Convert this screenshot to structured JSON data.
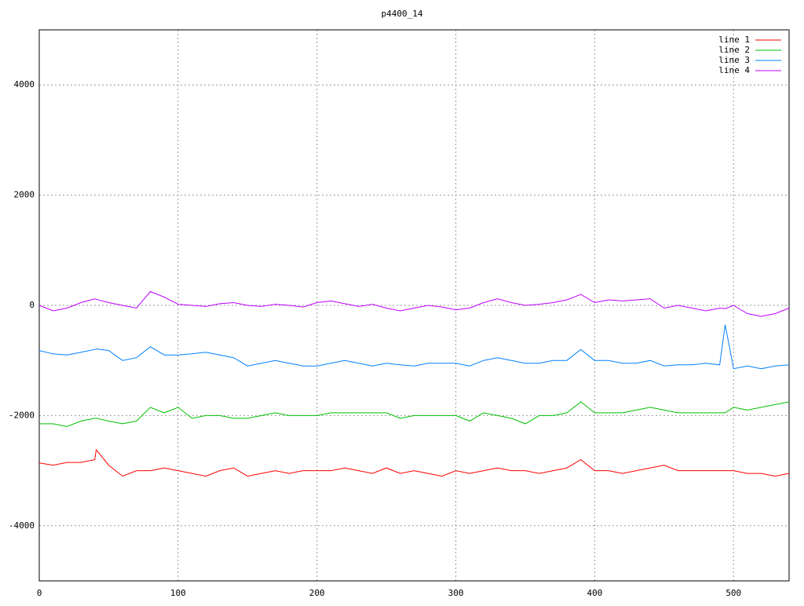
{
  "chart_data": {
    "type": "line",
    "title": "p4400_14",
    "x": [
      0,
      10,
      20,
      30,
      40,
      41,
      50,
      60,
      70,
      80,
      90,
      100,
      110,
      120,
      130,
      140,
      150,
      160,
      170,
      180,
      190,
      200,
      210,
      220,
      230,
      240,
      250,
      260,
      270,
      280,
      290,
      300,
      310,
      320,
      330,
      340,
      350,
      360,
      370,
      380,
      390,
      400,
      410,
      420,
      430,
      440,
      450,
      460,
      470,
      480,
      490,
      494,
      500,
      510,
      520,
      530,
      540
    ],
    "series": [
      {
        "name": "line 1",
        "color": "#ff0000",
        "values": [
          -2860,
          -2900,
          -2850,
          -2850,
          -2800,
          -2620,
          -2900,
          -3100,
          -3000,
          -3000,
          -2950,
          -3000,
          -3050,
          -3100,
          -3000,
          -2950,
          -3100,
          -3050,
          -3000,
          -3050,
          -3000,
          -3000,
          -3000,
          -2950,
          -3000,
          -3050,
          -2950,
          -3050,
          -3000,
          -3050,
          -3100,
          -3000,
          -3050,
          -3000,
          -2950,
          -3000,
          -3000,
          -3050,
          -3000,
          -2950,
          -2800,
          -3000,
          -3000,
          -3050,
          -3000,
          -2950,
          -2900,
          -3000,
          -3000,
          -3000,
          -3000,
          -3000,
          -3000,
          -3050,
          -3050,
          -3100,
          -3050
        ]
      },
      {
        "name": "line 2",
        "color": "#00c000",
        "values": [
          -2150,
          -2150,
          -2200,
          -2100,
          -2050,
          -2050,
          -2100,
          -2150,
          -2100,
          -1850,
          -1950,
          -1850,
          -2050,
          -2000,
          -2000,
          -2050,
          -2050,
          -2000,
          -1950,
          -2000,
          -2000,
          -2000,
          -1950,
          -1950,
          -1950,
          -1950,
          -1950,
          -2050,
          -2000,
          -2000,
          -2000,
          -2000,
          -2100,
          -1950,
          -2000,
          -2050,
          -2150,
          -2000,
          -2000,
          -1950,
          -1750,
          -1950,
          -1950,
          -1950,
          -1900,
          -1850,
          -1900,
          -1950,
          -1950,
          -1950,
          -1950,
          -1950,
          -1850,
          -1900,
          -1850,
          -1800,
          -1750
        ]
      },
      {
        "name": "line 3",
        "color": "#0080ff",
        "values": [
          -820,
          -880,
          -900,
          -850,
          -800,
          -790,
          -820,
          -1000,
          -950,
          -750,
          -900,
          -900,
          -880,
          -850,
          -900,
          -950,
          -1100,
          -1050,
          -1000,
          -1050,
          -1100,
          -1100,
          -1050,
          -1000,
          -1050,
          -1100,
          -1050,
          -1080,
          -1100,
          -1050,
          -1050,
          -1050,
          -1100,
          -1000,
          -950,
          -1000,
          -1050,
          -1050,
          -1000,
          -1000,
          -800,
          -1000,
          -1000,
          -1050,
          -1050,
          -1000,
          -1100,
          -1080,
          -1080,
          -1050,
          -1080,
          -350,
          -1150,
          -1100,
          -1150,
          -1100,
          -1080
        ]
      },
      {
        "name": "line 4",
        "color": "#c000ff",
        "values": [
          0,
          -100,
          -50,
          50,
          120,
          110,
          50,
          0,
          -50,
          250,
          150,
          20,
          0,
          -20,
          30,
          50,
          0,
          -20,
          20,
          0,
          -30,
          50,
          80,
          30,
          -20,
          20,
          -50,
          -100,
          -50,
          0,
          -30,
          -80,
          -50,
          50,
          120,
          50,
          0,
          20,
          50,
          100,
          200,
          50,
          100,
          80,
          100,
          120,
          -50,
          0,
          -50,
          -100,
          -50,
          -60,
          0,
          -150,
          -200,
          -150,
          -50
        ]
      }
    ],
    "xlim": [
      0,
      540
    ],
    "xticks": [
      0,
      100,
      200,
      300,
      400,
      500
    ],
    "ylim": [
      -5000,
      5000
    ],
    "yticks": [
      -4000,
      -2000,
      0,
      2000,
      4000
    ],
    "grid": true,
    "legend": "top-right"
  }
}
